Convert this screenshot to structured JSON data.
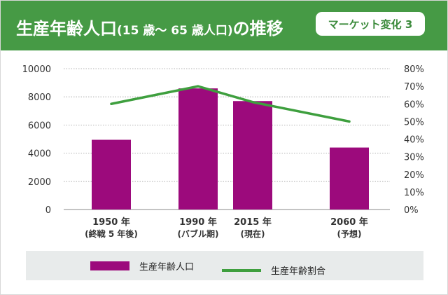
{
  "header": {
    "title_main": "生産年齢人口",
    "title_paren": "(15 歳〜 65 歳人口)",
    "title_tail": "の推移",
    "badge": "マーケット変化 3"
  },
  "colors": {
    "header_bg": "#469a45",
    "bar": "#9c0a7c",
    "line": "#3e9f3e",
    "legend_bg": "#e8ebeb"
  },
  "legend": {
    "bar_label": "生産年齢人口",
    "line_label": "生産年齢割合"
  },
  "chart_data": {
    "type": "bar+line",
    "categories": [
      {
        "year": "1950 年",
        "note": "(終戦 5 年後)"
      },
      {
        "year": "1990 年",
        "note": "(バブル期)"
      },
      {
        "year": "2015 年",
        "note": "(現在)"
      },
      {
        "year": "2060 年",
        "note": "(予想)"
      }
    ],
    "series": [
      {
        "name": "生産年齢人口",
        "type": "bar",
        "axis": "left",
        "values": [
          4950,
          8600,
          7700,
          4400
        ]
      },
      {
        "name": "生産年齢割合",
        "type": "line",
        "axis": "right",
        "values": [
          60,
          70,
          61,
          50
        ]
      }
    ],
    "y_left": {
      "min": 0,
      "max": 10000,
      "ticks": [
        "0",
        "2000",
        "4000",
        "6000",
        "8000",
        "10000"
      ]
    },
    "y_right": {
      "min": 0,
      "max": 80,
      "ticks": [
        "0%",
        "10%",
        "20%",
        "30%",
        "40%",
        "50%",
        "60%",
        "70%",
        "80%"
      ]
    },
    "grid": true,
    "legend_position": "bottom"
  }
}
